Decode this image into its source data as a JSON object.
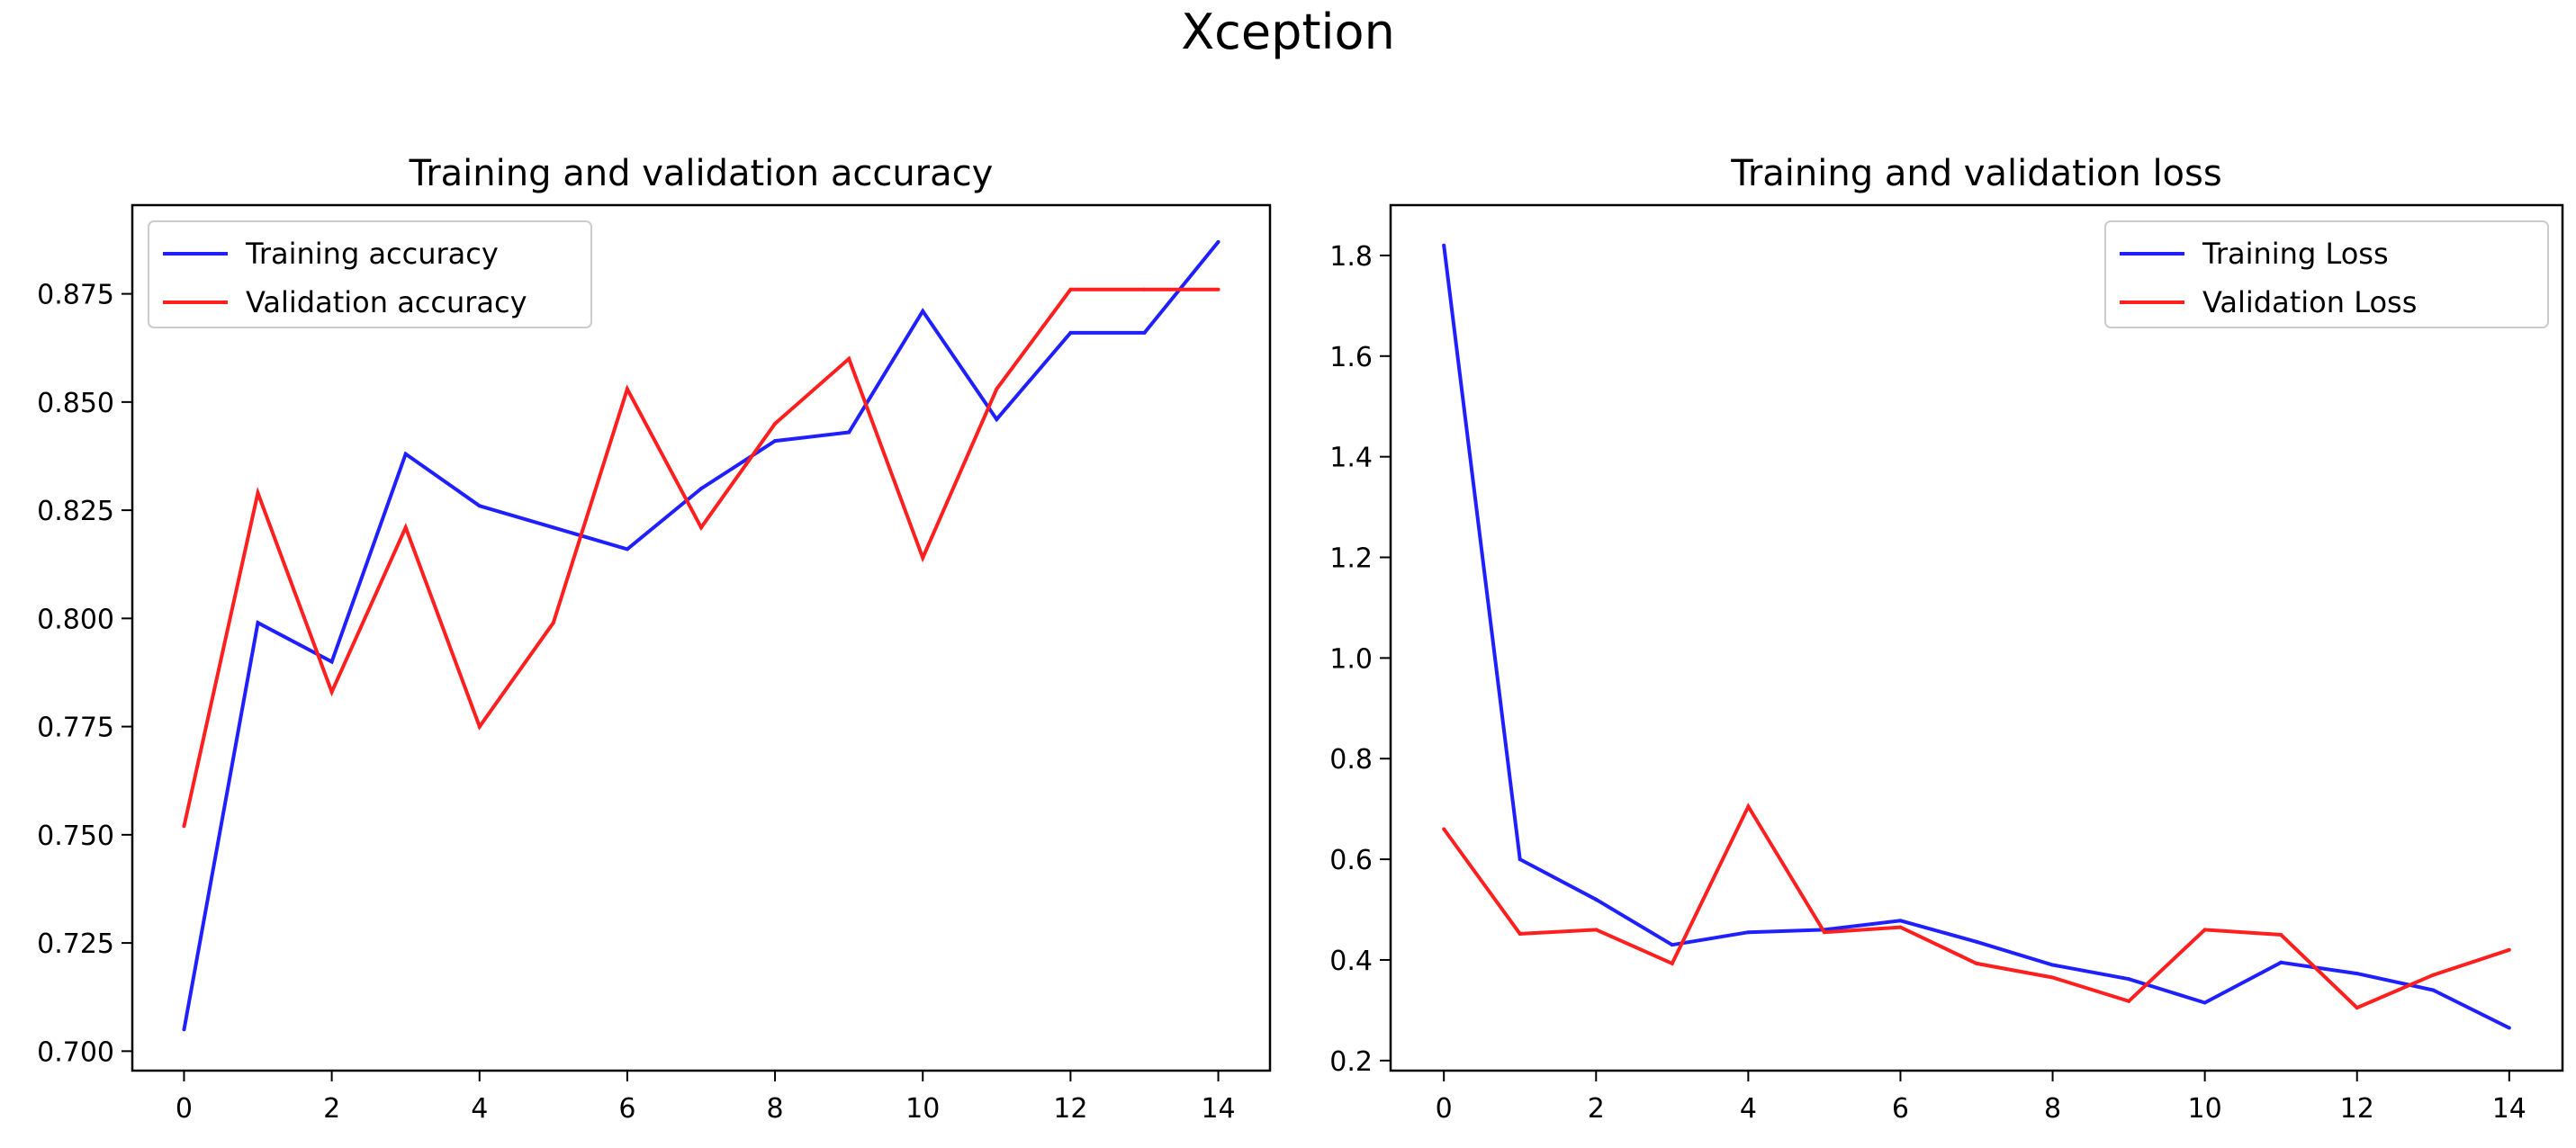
{
  "figure": {
    "title": "Xception"
  },
  "chart_data": [
    {
      "type": "line",
      "title": "Training and validation accuracy",
      "xlabel": "",
      "ylabel": "",
      "x": [
        0,
        1,
        2,
        3,
        4,
        5,
        6,
        7,
        8,
        9,
        10,
        11,
        12,
        13,
        14
      ],
      "xticks": [
        0,
        2,
        4,
        6,
        8,
        10,
        12,
        14
      ],
      "xtick_labels": [
        "0",
        "2",
        "4",
        "6",
        "8",
        "10",
        "12",
        "14"
      ],
      "yticks": [
        0.7,
        0.725,
        0.75,
        0.775,
        0.8,
        0.825,
        0.85,
        0.875
      ],
      "ytick_labels": [
        "0.700",
        "0.725",
        "0.750",
        "0.775",
        "0.800",
        "0.825",
        "0.850",
        "0.875"
      ],
      "xlim": [
        -0.7,
        14.7
      ],
      "ylim": [
        0.6955,
        0.8955
      ],
      "grid": false,
      "legend": "top-left",
      "series": [
        {
          "name": "Training accuracy",
          "color": "#1f1fff",
          "values": [
            0.705,
            0.799,
            0.79,
            0.838,
            0.826,
            0.821,
            0.816,
            0.83,
            0.841,
            0.843,
            0.871,
            0.846,
            0.866,
            0.866,
            0.887
          ]
        },
        {
          "name": "Validation accuracy",
          "color": "#ff1f1f",
          "values": [
            0.752,
            0.829,
            0.783,
            0.821,
            0.775,
            0.799,
            0.853,
            0.821,
            0.845,
            0.86,
            0.814,
            0.853,
            0.876,
            0.876,
            0.876
          ]
        }
      ]
    },
    {
      "type": "line",
      "title": "Training and validation loss",
      "xlabel": "",
      "ylabel": "",
      "x": [
        0,
        1,
        2,
        3,
        4,
        5,
        6,
        7,
        8,
        9,
        10,
        11,
        12,
        13,
        14
      ],
      "xticks": [
        0,
        2,
        4,
        6,
        8,
        10,
        12,
        14
      ],
      "xtick_labels": [
        "0",
        "2",
        "4",
        "6",
        "8",
        "10",
        "12",
        "14"
      ],
      "yticks": [
        0.2,
        0.4,
        0.6,
        0.8,
        1.0,
        1.2,
        1.4,
        1.6,
        1.8
      ],
      "ytick_labels": [
        "0.2",
        "0.4",
        "0.6",
        "0.8",
        "1.0",
        "1.2",
        "1.4",
        "1.6",
        "1.8"
      ],
      "xlim": [
        -0.7,
        14.7
      ],
      "ylim": [
        0.18,
        1.9
      ],
      "grid": false,
      "legend": "top-right",
      "series": [
        {
          "name": "Training Loss",
          "color": "#1f1fff",
          "values": [
            1.82,
            0.6,
            0.52,
            0.43,
            0.455,
            0.46,
            0.478,
            0.436,
            0.39,
            0.362,
            0.315,
            0.395,
            0.373,
            0.34,
            0.265
          ]
        },
        {
          "name": "Validation Loss",
          "color": "#ff1f1f",
          "values": [
            0.66,
            0.452,
            0.46,
            0.393,
            0.705,
            0.455,
            0.465,
            0.393,
            0.365,
            0.318,
            0.46,
            0.45,
            0.305,
            0.37,
            0.42
          ]
        }
      ]
    }
  ]
}
